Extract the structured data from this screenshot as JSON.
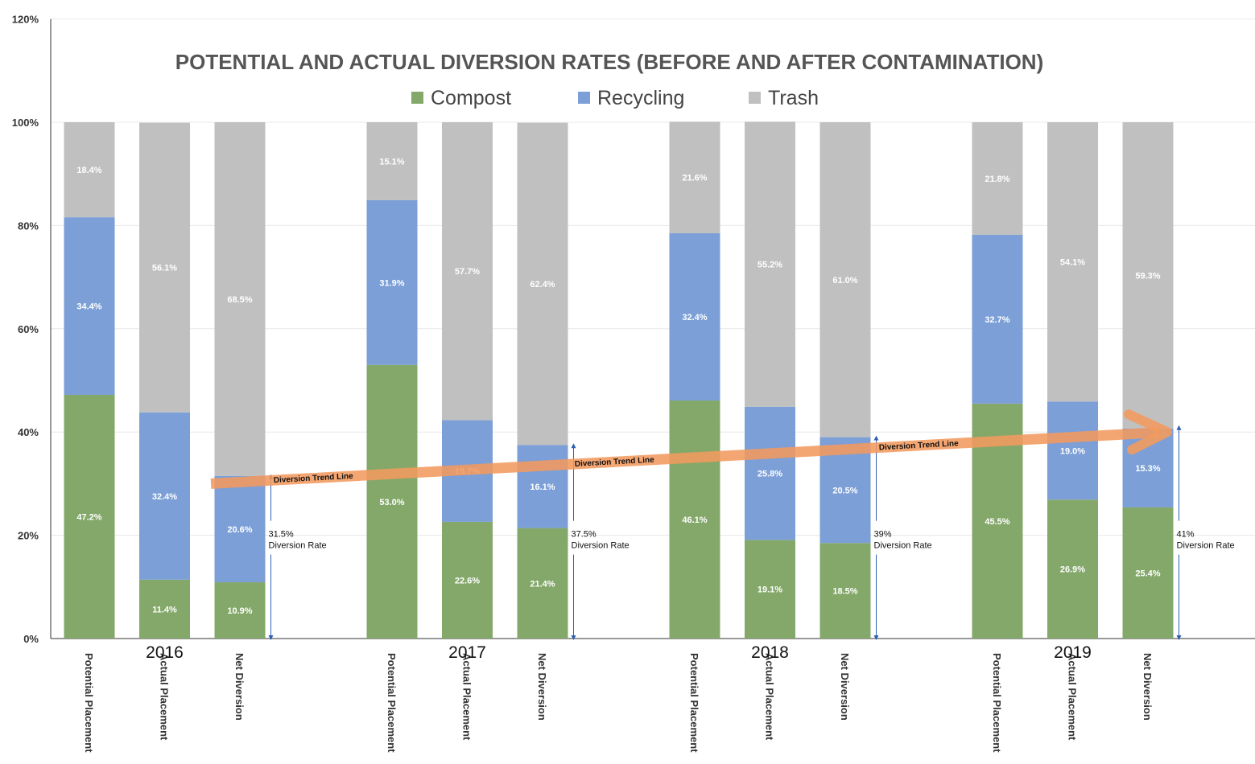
{
  "chart_data": {
    "type": "bar",
    "stacked": true,
    "title": "POTENTIAL AND ACTUAL DIVERSION RATES (BEFORE AND AFTER CONTAMINATION)",
    "ylim": [
      0,
      120
    ],
    "yticks": [
      "0%",
      "20%",
      "40%",
      "60%",
      "80%",
      "100%",
      "120%"
    ],
    "legend_position": "top",
    "grid": true,
    "colors": {
      "Compost": "#84a86a",
      "Recycling": "#7b9fd6",
      "Trash": "#c0c0c0",
      "trend": "#f29a5f"
    },
    "series_names": [
      "Compost",
      "Recycling",
      "Trash"
    ],
    "groups": [
      {
        "year": "2016",
        "bars": [
          {
            "label": "Potential Placement",
            "values": [
              47.2,
              34.4,
              18.4
            ],
            "labels": [
              "47.2%",
              "34.4%",
              "18.4%"
            ]
          },
          {
            "label": "Actual Placement",
            "values": [
              11.4,
              32.4,
              56.1
            ],
            "labels": [
              "11.4%",
              "32.4%",
              "56.1%"
            ]
          },
          {
            "label": "Net Diversion",
            "values": [
              10.9,
              20.6,
              68.5
            ],
            "labels": [
              "10.9%",
              "20.6%",
              "68.5%"
            ]
          }
        ],
        "annotation": {
          "line1": "31.5%",
          "line2": "Diversion Rate",
          "value": 31.5
        }
      },
      {
        "year": "2017",
        "bars": [
          {
            "label": "Potential Placement",
            "values": [
              53.0,
              31.9,
              15.1
            ],
            "labels": [
              "53.0%",
              "31.9%",
              "15.1%"
            ]
          },
          {
            "label": "Actual Placement",
            "values": [
              22.6,
              19.7,
              57.7
            ],
            "labels": [
              "22.6%",
              "19.7%",
              "57.7%"
            ]
          },
          {
            "label": "Net Diversion",
            "values": [
              21.4,
              16.1,
              62.4
            ],
            "labels": [
              "21.4%",
              "16.1%",
              "62.4%"
            ]
          }
        ],
        "annotation": {
          "line1": "37.5%",
          "line2": "Diversion Rate",
          "value": 37.5
        }
      },
      {
        "year": "2018",
        "bars": [
          {
            "label": "Potential Placement",
            "values": [
              46.1,
              32.4,
              21.6
            ],
            "labels": [
              "46.1%",
              "32.4%",
              "21.6%"
            ]
          },
          {
            "label": "Actual Placement",
            "values": [
              19.1,
              25.8,
              55.2
            ],
            "labels": [
              "19.1%",
              "25.8%",
              "55.2%"
            ]
          },
          {
            "label": "Net Diversion",
            "values": [
              18.5,
              20.5,
              61.0
            ],
            "labels": [
              "18.5%",
              "20.5%",
              "61.0%"
            ]
          }
        ],
        "annotation": {
          "line1": "39%",
          "line2": "Diversion Rate",
          "value": 39
        }
      },
      {
        "year": "2019",
        "bars": [
          {
            "label": "Potential Placement",
            "values": [
              45.5,
              32.7,
              21.8
            ],
            "labels": [
              "45.5%",
              "32.7%",
              "21.8%"
            ]
          },
          {
            "label": "Actual Placement",
            "values": [
              26.9,
              19.0,
              54.1
            ],
            "labels": [
              "26.9%",
              "19.0%",
              "54.1%"
            ]
          },
          {
            "label": "Net Diversion",
            "values": [
              25.4,
              15.3,
              59.3
            ],
            "labels": [
              "25.4%",
              "15.3%",
              "59.3%"
            ]
          }
        ],
        "annotation": {
          "line1": "41%",
          "line2": "Diversion Rate",
          "value": 41
        }
      }
    ],
    "trend_line": {
      "label": "Diversion Trend Line",
      "start": 30,
      "end": 40
    }
  }
}
